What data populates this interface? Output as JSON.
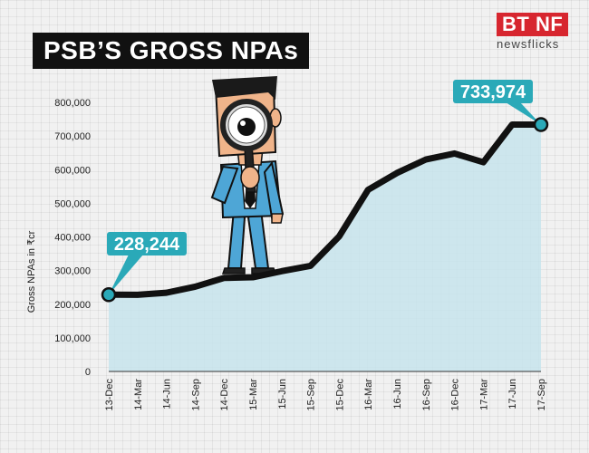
{
  "header": {
    "title": "PSB’S GROSS NPAs",
    "logo_main": "BT NF",
    "logo_sub": "newsflicks"
  },
  "colors": {
    "line": "#111111",
    "area": "#c7e4ec",
    "callout": "#2aa9b8",
    "callout_text": "#ffffff"
  },
  "chart_data": {
    "type": "area",
    "title": "PSB’S GROSS NPAs",
    "ylabel": "Gross NPAs in ₹cr",
    "xlabel": "",
    "categories": [
      "13-Dec",
      "14-Mar",
      "14-Jun",
      "14-Sep",
      "14-Dec",
      "15-Mar",
      "15-Jun",
      "15-Sep",
      "15-Dec",
      "16-Mar",
      "16-Jun",
      "16-Sep",
      "16-Dec",
      "17-Mar",
      "17-Jun",
      "17-Sep"
    ],
    "values": [
      228244,
      228000,
      234000,
      252000,
      278000,
      280000,
      298000,
      314000,
      402000,
      540000,
      590000,
      630000,
      648000,
      622000,
      733974,
      733974
    ],
    "ylim": [
      0,
      800000
    ],
    "yticks": [
      0,
      100000,
      200000,
      300000,
      400000,
      500000,
      600000,
      700000,
      800000
    ],
    "ytick_labels": [
      "0",
      "100,000",
      "200,000",
      "300,000",
      "400,000",
      "500,000",
      "600,000",
      "700,000",
      "800,000"
    ],
    "grid": false,
    "annotations": [
      {
        "index": 0,
        "label": "228,244"
      },
      {
        "index": 15,
        "label": "733,974"
      }
    ]
  }
}
